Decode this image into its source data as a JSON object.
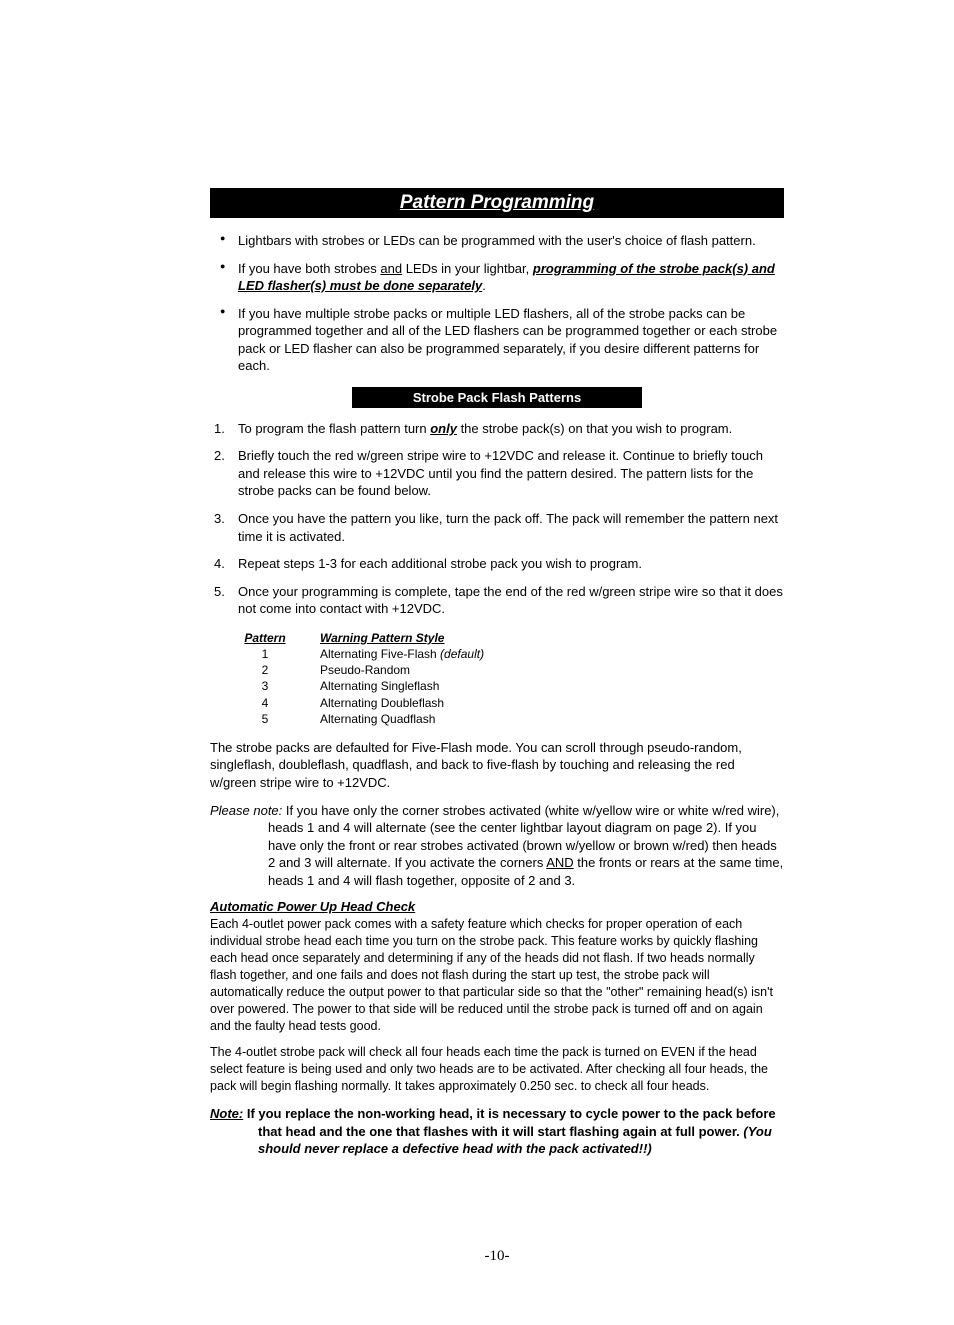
{
  "section_title": "Pattern Programming",
  "bullets": {
    "b1": "Lightbars with strobes or LEDs can be programmed with the user's choice of flash pattern.",
    "b2_pre": "If you have both strobes ",
    "b2_and": "and",
    "b2_mid": " LEDs in your lightbar, ",
    "b2_emph": "programming of the strobe pack(s) and LED flasher(s) must be done separately",
    "b2_post": ".",
    "b3": "If you have multiple strobe packs or multiple LED flashers, all of the strobe packs can be programmed together and all of the LED flashers can be programmed together or each strobe pack or LED flasher can also be programmed separately, if you desire different patterns for each."
  },
  "sub_title": "Strobe Pack Flash Patterns",
  "steps": {
    "s1_pre": "To program the flash pattern turn ",
    "s1_only": "only",
    "s1_post": " the strobe pack(s) on that you wish to program.",
    "s2": "Briefly touch the red w/green stripe wire to +12VDC and release it.  Continue to briefly touch and release this wire to +12VDC until you find the pattern desired.  The pattern lists for the strobe packs can be found below.",
    "s3": "Once you have the pattern you like, turn the pack off.  The pack will remember the pattern next time it is activated.",
    "s4": "Repeat steps 1-3 for each additional strobe pack you wish to program.",
    "s5": "Once your programming is complete, tape the end of the red w/green stripe wire so that it does not come into contact with +12VDC."
  },
  "pattern_table": {
    "head_pattern": "Pattern",
    "head_style": "Warning Pattern Style",
    "rows": [
      {
        "p": "1",
        "s": "Alternating Five-Flash ",
        "def": "(default)"
      },
      {
        "p": "2",
        "s": "Pseudo-Random",
        "def": ""
      },
      {
        "p": "3",
        "s": "Alternating Singleflash",
        "def": ""
      },
      {
        "p": "4",
        "s": "Alternating Doubleflash",
        "def": ""
      },
      {
        "p": "5",
        "s": "Alternating Quadflash",
        "def": ""
      }
    ]
  },
  "para_default": "The strobe packs are defaulted for Five-Flash mode.  You can scroll through pseudo-random, singleflash, doubleflash, quadflash, and back to five-flash by touching and releasing the red w/green stripe wire to +12VDC.",
  "please_note": {
    "label": "Please note:",
    "body_pre": "  If you have only the corner strobes activated (white w/yellow wire or white w/red wire), heads 1 and 4 will alternate (see the center lightbar layout diagram on page 2).  If you have only the front or rear strobes activated (brown w/yellow or brown w/red) then heads 2 and 3 will alternate.  If you activate the corners ",
    "and": "AND",
    "body_post": " the fronts or rears at the same time, heads 1 and 4 will flash together, opposite of 2 and 3."
  },
  "auto_head": {
    "title": "Automatic Power Up Head Check",
    "p1": "Each 4-outlet power pack comes with a safety feature which checks for proper operation of each individual strobe head each time you turn on the strobe pack.  This feature works by quickly flashing each head once separately and determining if any of the heads did not flash.  If two heads normally flash together, and one fails and does not flash during the start up test, the strobe pack will automatically reduce the output power to that particular side so that the \"other\" remaining head(s) isn't over powered.  The power to that side will be reduced until the strobe pack is turned off and on again and the faulty head tests good.",
    "p2": "The 4-outlet strobe pack will check all four heads each time the pack is turned on EVEN if the head select feature is being used and only two heads are to be activated.  After checking all four heads, the pack will begin flashing normally.  It takes approximately 0.250 sec. to check all four heads."
  },
  "note2": {
    "label": "Note:",
    "body_pre": "   If you replace the non-working head, it is necessary to cycle power to the pack before that head and the one that flashes with it will start flashing again at full power.  ",
    "italic_tail": "(You should never replace a defective head with the pack activated!!)"
  },
  "page_number": "-10-"
}
